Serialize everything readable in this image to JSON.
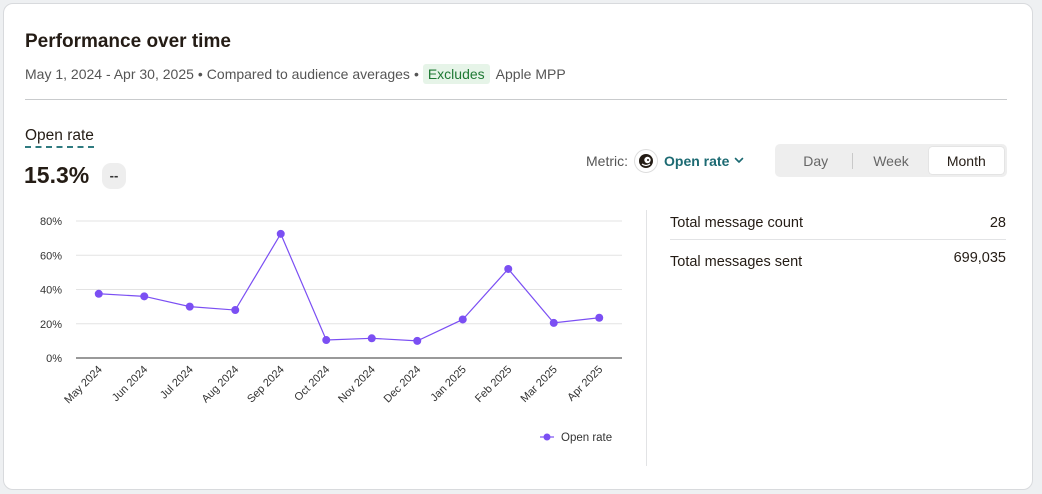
{
  "header": {
    "title": "Performance over time",
    "date_range": "May 1, 2024 - Apr 30, 2025",
    "bullet": "•",
    "compared": "Compared to audience averages",
    "excludes_badge": "Excludes",
    "excludes_item": "Apple MPP"
  },
  "metric": {
    "label": "Open rate",
    "value": "15.3%",
    "delta": "--"
  },
  "metric_select": {
    "label": "Metric:",
    "value": "Open rate",
    "icon": "mailchimp-freddie-icon"
  },
  "period_toggle": {
    "options": [
      "Day",
      "Week",
      "Month"
    ],
    "active": "Month"
  },
  "stats": [
    {
      "label": "Total message count",
      "value": "28"
    },
    {
      "label": "Total messages sent",
      "value": "699,035"
    }
  ],
  "colors": {
    "series": "#7b4ff3",
    "badge_bg": "#e6f4e8",
    "badge_text": "#1f7a34",
    "link": "#1c6a72"
  },
  "chart_data": {
    "type": "line",
    "categories": [
      "May 2024",
      "Jun 2024",
      "Jul 2024",
      "Aug 2024",
      "Sep 2024",
      "Oct 2024",
      "Nov 2024",
      "Dec 2024",
      "Jan 2025",
      "Feb 2025",
      "Mar 2025",
      "Apr 2025"
    ],
    "series": [
      {
        "name": "Open rate",
        "values": [
          37.5,
          36,
          30,
          28,
          72.5,
          10.5,
          11.5,
          10,
          22.5,
          52,
          20.5,
          23.5
        ]
      }
    ],
    "y_ticks": [
      "0%",
      "20%",
      "40%",
      "60%",
      "80%"
    ],
    "ylim": [
      0,
      80
    ],
    "grid": true,
    "legend": "bottom-right"
  }
}
